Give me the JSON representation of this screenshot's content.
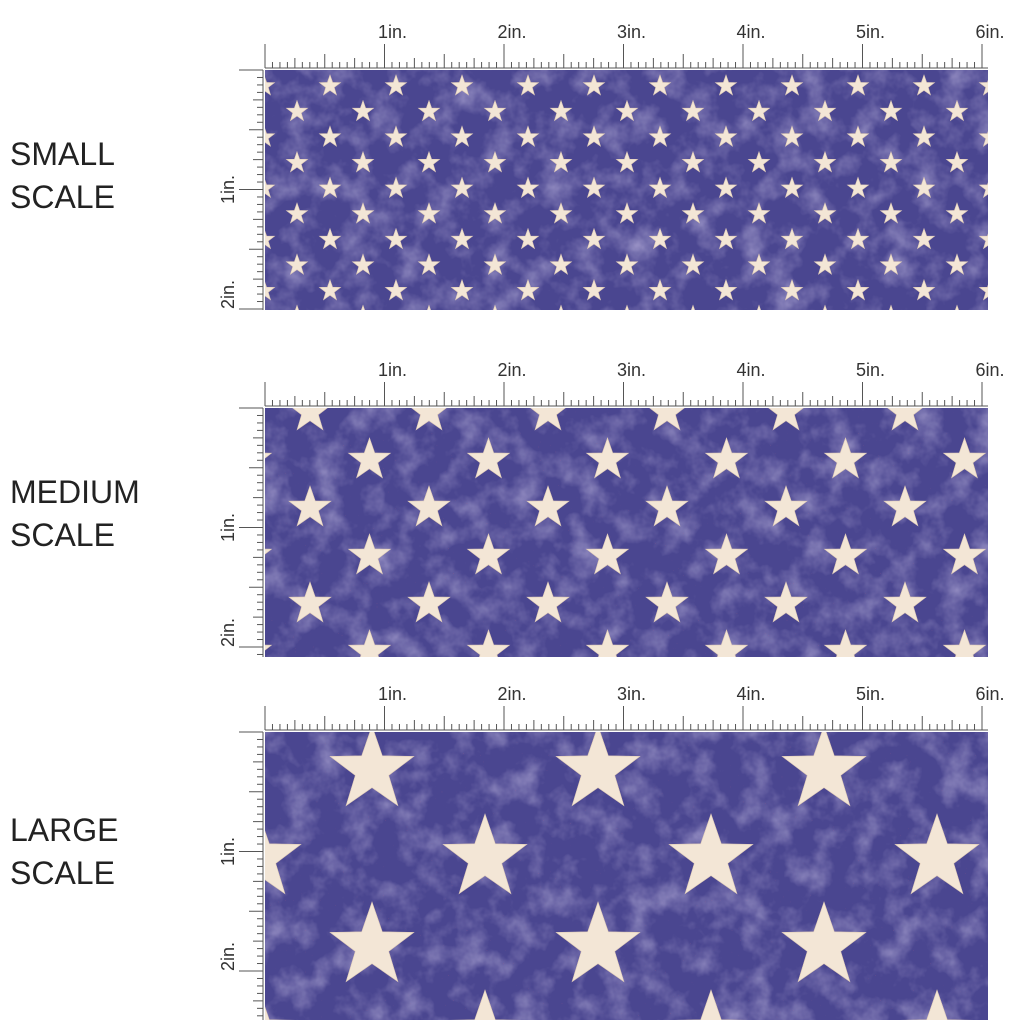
{
  "panels": [
    {
      "label": [
        "SMALL",
        "SCALE"
      ],
      "ruler_top": [
        "1in.",
        "2in.",
        "3in.",
        "4in.",
        "5in.",
        "6in."
      ],
      "ruler_side": [
        "1in.",
        "2in."
      ]
    },
    {
      "label": [
        "MEDIUM",
        "SCALE"
      ],
      "ruler_top": [
        "1in.",
        "2in.",
        "3in.",
        "4in.",
        "5in.",
        "6in."
      ],
      "ruler_side": [
        "1in.",
        "2in."
      ]
    },
    {
      "label": [
        "LARGE",
        "SCALE"
      ],
      "ruler_top": [
        "1in.",
        "2in.",
        "3in.",
        "4in.",
        "5in.",
        "6in."
      ],
      "ruler_side": [
        "1in.",
        "2in."
      ]
    }
  ]
}
